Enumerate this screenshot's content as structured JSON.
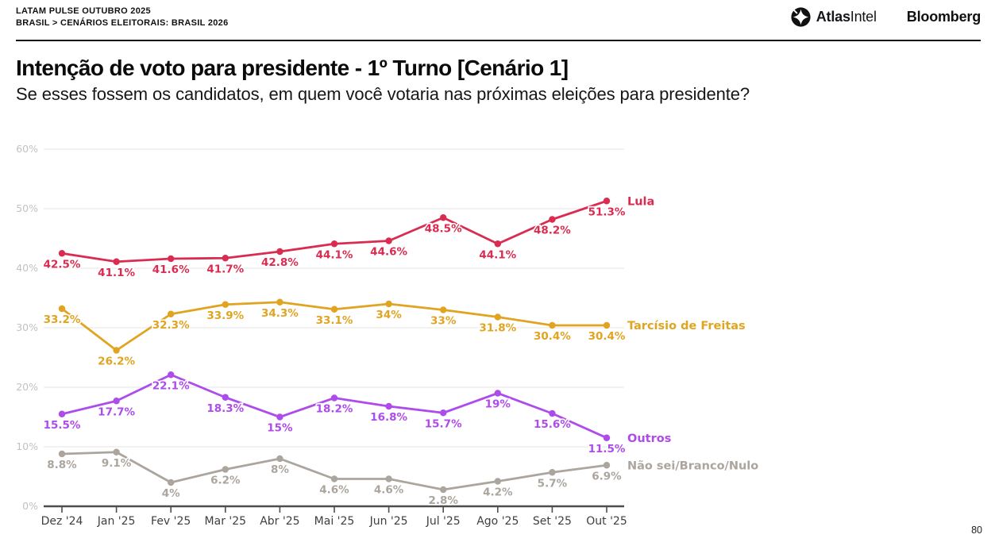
{
  "header": {
    "kicker": "LATAM PULSE OUTUBRO 2025",
    "breadcrumb": "BRASIL > CENÁRIOS ELEITORAIS: BRASIL 2026",
    "logos": {
      "atlas_bold": "Atlas",
      "atlas_light": "Intel",
      "bloomberg": "Bloomberg"
    }
  },
  "title": "Intenção de voto para presidente - 1º Turno [Cenário 1]",
  "subtitle": "Se esses fossem os candidatos, em quem você votaria nas próximas eleições para presidente?",
  "page_number": "80",
  "chart_data": {
    "type": "line",
    "title": "Intenção de voto para presidente - 1º Turno [Cenário 1]",
    "xlabel": "",
    "ylabel": "",
    "ylim": [
      0,
      60
    ],
    "yticks": [
      0,
      10,
      20,
      30,
      40,
      50,
      60
    ],
    "ytick_labels": [
      "0%",
      "10%",
      "20%",
      "30%",
      "40%",
      "50%",
      "60%"
    ],
    "grid": true,
    "legend_position": "right-of-line-end",
    "categories": [
      "Dez '24",
      "Jan '25",
      "Fev '25",
      "Mar '25",
      "Abr '25",
      "Mai '25",
      "Jun '25",
      "Jul '25",
      "Ago '25",
      "Set '25",
      "Out '25"
    ],
    "series": [
      {
        "name": "Lula",
        "color": "#DA2C51",
        "values": [
          42.5,
          41.1,
          41.6,
          41.7,
          42.8,
          44.1,
          44.6,
          48.5,
          44.1,
          48.2,
          51.3
        ],
        "labels": [
          "42.5%",
          "41.1%",
          "41.6%",
          "41.7%",
          "42.8%",
          "44.1%",
          "44.6%",
          "48.5%",
          "44.1%",
          "48.2%",
          "51.3%"
        ]
      },
      {
        "name": "Tarcísio de Freitas",
        "color": "#E0A421",
        "values": [
          33.2,
          26.2,
          32.3,
          33.9,
          34.3,
          33.1,
          34,
          33,
          31.8,
          30.4,
          30.4
        ],
        "labels": [
          "33.2%",
          "26.2%",
          "32.3%",
          "33.9%",
          "34.3%",
          "33.1%",
          "34%",
          "33%",
          "31.8%",
          "30.4%",
          "30.4%"
        ]
      },
      {
        "name": "Outros",
        "color": "#AE4BEB",
        "values": [
          15.5,
          17.7,
          22.1,
          18.3,
          15,
          18.2,
          16.8,
          15.7,
          19,
          15.6,
          11.5
        ],
        "labels": [
          "15.5%",
          "17.7%",
          "22.1%",
          "18.3%",
          "15%",
          "18.2%",
          "16.8%",
          "15.7%",
          "19%",
          "15.6%",
          "11.5%"
        ]
      },
      {
        "name": "Não sei/Branco/Nulo",
        "color": "#ACA59E",
        "values": [
          8.8,
          9.1,
          4,
          6.2,
          8,
          4.6,
          4.6,
          2.8,
          4.2,
          5.7,
          6.9
        ],
        "labels": [
          "8.8%",
          "9.1%",
          "4%",
          "6.2%",
          "8%",
          "4.6%",
          "4.6%",
          "2.8%",
          "4.2%",
          "5.7%",
          "6.9%"
        ]
      }
    ],
    "colors": {
      "gridline": "#eaeaea",
      "axis": "#4d4d4d",
      "x_tick_label": "#3f3f3f",
      "y_tick_label": "#c4c2c0"
    }
  }
}
